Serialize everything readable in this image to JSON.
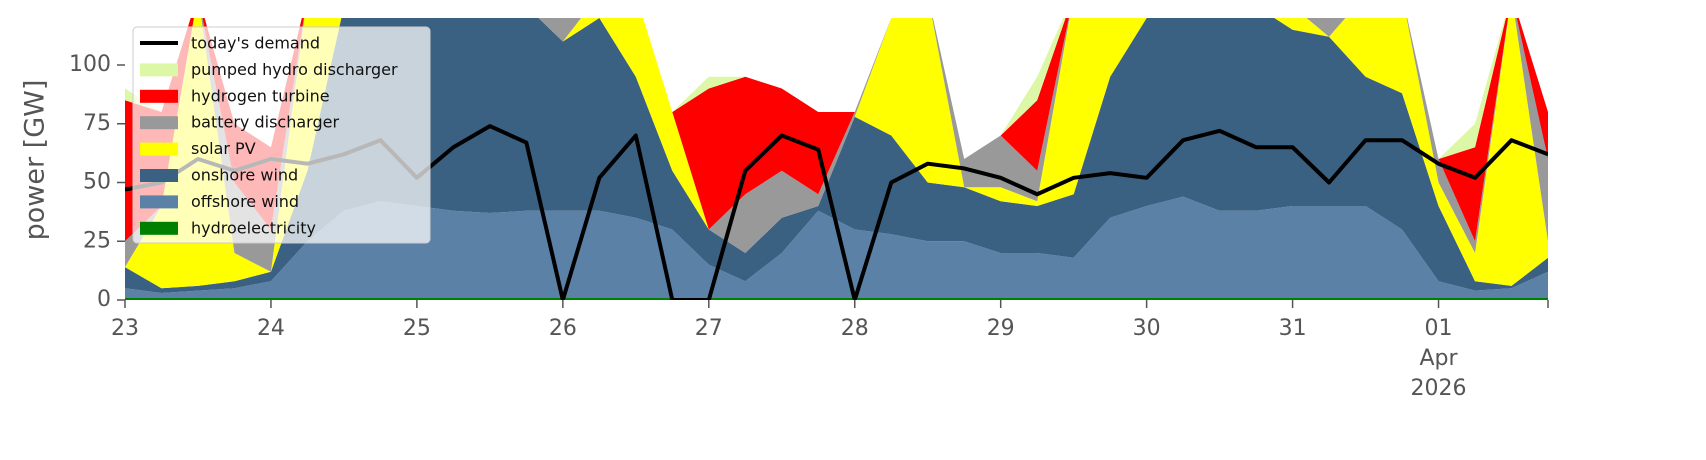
{
  "chart_data": {
    "type": "area",
    "ylabel": "power [GW]",
    "x": [
      "2026-03-23T00:00",
      "2026-03-23T06:00",
      "2026-03-23T12:00",
      "2026-03-23T18:00",
      "2026-03-24T00:00",
      "2026-03-24T06:00",
      "2026-03-24T12:00",
      "2026-03-24T18:00",
      "2026-03-25T00:00",
      "2026-03-25T06:00",
      "2026-03-25T12:00",
      "2026-03-25T18:00",
      "2026-03-26T00:00",
      "2026-03-26T06:00",
      "2026-03-26T12:00",
      "2026-03-26T18:00",
      "2026-03-27T00:00",
      "2026-03-27T06:00",
      "2026-03-27T12:00",
      "2026-03-27T18:00",
      "2026-03-28T00:00",
      "2026-03-28T06:00",
      "2026-03-28T12:00",
      "2026-03-28T18:00",
      "2026-03-29T00:00",
      "2026-03-29T06:00",
      "2026-03-29T12:00",
      "2026-03-29T18:00",
      "2026-03-30T00:00",
      "2026-03-30T06:00",
      "2026-03-30T12:00",
      "2026-03-30T18:00",
      "2026-03-31T00:00",
      "2026-03-31T06:00",
      "2026-03-31T12:00",
      "2026-03-31T18:00",
      "2026-04-01T00:00",
      "2026-04-01T06:00",
      "2026-04-01T12:00",
      "2026-04-01T18:00"
    ],
    "xlim": [
      "2026-03-23T00:00",
      "2026-04-01T18:00"
    ],
    "xticks": [
      {
        "value": "2026-03-23",
        "label": "23"
      },
      {
        "value": "2026-03-24",
        "label": "24"
      },
      {
        "value": "2026-03-25",
        "label": "25"
      },
      {
        "value": "2026-03-26",
        "label": "26"
      },
      {
        "value": "2026-03-27",
        "label": "27"
      },
      {
        "value": "2026-03-28",
        "label": "28"
      },
      {
        "value": "2026-03-29",
        "label": "29"
      },
      {
        "value": "2026-03-30",
        "label": "30"
      },
      {
        "value": "2026-03-31",
        "label": "31"
      },
      {
        "value": "2026-04-01",
        "label": "01"
      }
    ],
    "xtick_sublabels": [
      "Apr",
      "2026"
    ],
    "ylim": [
      0,
      120
    ],
    "yticks": [
      0,
      25,
      50,
      75,
      100
    ],
    "grid": false,
    "legend": "upper left",
    "series": [
      {
        "name": "today's demand",
        "type": "line",
        "color": "#000000",
        "values": [
          47,
          50,
          60,
          55,
          60,
          58,
          62,
          68,
          52,
          65,
          74,
          67,
          0,
          52,
          70,
          0,
          0,
          55,
          70,
          64,
          0,
          50,
          58,
          56,
          52,
          45,
          52,
          54,
          52,
          68,
          72,
          65,
          65,
          50,
          68,
          68,
          58,
          52,
          68,
          62
        ]
      },
      {
        "name": "pumped hydro discharger",
        "color": "#dcf7a5",
        "values": [
          5,
          0,
          0,
          0,
          0,
          0,
          0,
          0,
          0,
          0,
          0,
          0,
          0,
          0,
          0,
          0,
          5,
          0,
          0,
          0,
          0,
          0,
          0,
          0,
          0,
          10,
          0,
          0,
          0,
          0,
          0,
          0,
          0,
          0,
          0,
          0,
          0,
          10,
          0,
          0
        ]
      },
      {
        "name": "hydrogen turbine",
        "color": "#ff0000",
        "values": [
          60,
          40,
          0,
          25,
          35,
          0,
          0,
          0,
          0,
          0,
          0,
          0,
          0,
          0,
          0,
          0,
          60,
          50,
          35,
          35,
          0,
          0,
          0,
          0,
          0,
          30,
          0,
          0,
          0,
          0,
          0,
          0,
          0,
          0,
          0,
          0,
          0,
          40,
          0,
          20
        ]
      },
      {
        "name": "battery discharger",
        "color": "#999999",
        "values": [
          11,
          0,
          0,
          30,
          18,
          0,
          0,
          0,
          0,
          0,
          0,
          5,
          15,
          0,
          0,
          0,
          0,
          25,
          20,
          5,
          2,
          0,
          0,
          12,
          22,
          13,
          0,
          0,
          0,
          0,
          0,
          5,
          5,
          8,
          0,
          0,
          10,
          5,
          0,
          35
        ]
      },
      {
        "name": "solar PV",
        "color": "#ffff00",
        "values": [
          0,
          35,
          124,
          12,
          0,
          75,
          5,
          0,
          0,
          0,
          0,
          0,
          0,
          10,
          35,
          25,
          0,
          0,
          0,
          0,
          0,
          50,
          80,
          0,
          6,
          2,
          85,
          35,
          10,
          0,
          0,
          0,
          10,
          0,
          35,
          42,
          10,
          12,
          124,
          7
        ]
      },
      {
        "name": "onshore wind",
        "color": "#3b6182",
        "values": [
          9,
          2,
          2,
          3,
          4,
          30,
          87,
          88,
          90,
          92,
          93,
          87,
          72,
          82,
          60,
          25,
          15,
          12,
          15,
          2,
          48,
          42,
          25,
          23,
          22,
          20,
          27,
          60,
          80,
          86,
          92,
          87,
          75,
          72,
          55,
          58,
          32,
          4,
          1,
          6
        ]
      },
      {
        "name": "offshore wind",
        "color": "#5b82a6",
        "values": [
          4,
          2,
          3,
          4,
          7,
          24,
          37,
          41,
          39,
          37,
          36,
          37,
          37,
          37,
          34,
          29,
          14,
          7,
          19,
          37,
          29,
          27,
          24,
          24,
          19,
          19,
          17,
          34,
          39,
          43,
          37,
          37,
          39,
          39,
          39,
          29,
          7,
          3,
          4,
          11
        ]
      },
      {
        "name": "hydroelectricity",
        "color": "#008000",
        "values": [
          1,
          1,
          1,
          1,
          1,
          1,
          1,
          1,
          1,
          1,
          1,
          1,
          1,
          1,
          1,
          1,
          1,
          1,
          1,
          1,
          1,
          1,
          1,
          1,
          1,
          1,
          1,
          1,
          1,
          1,
          1,
          1,
          1,
          1,
          1,
          1,
          1,
          1,
          1,
          1
        ]
      }
    ]
  }
}
